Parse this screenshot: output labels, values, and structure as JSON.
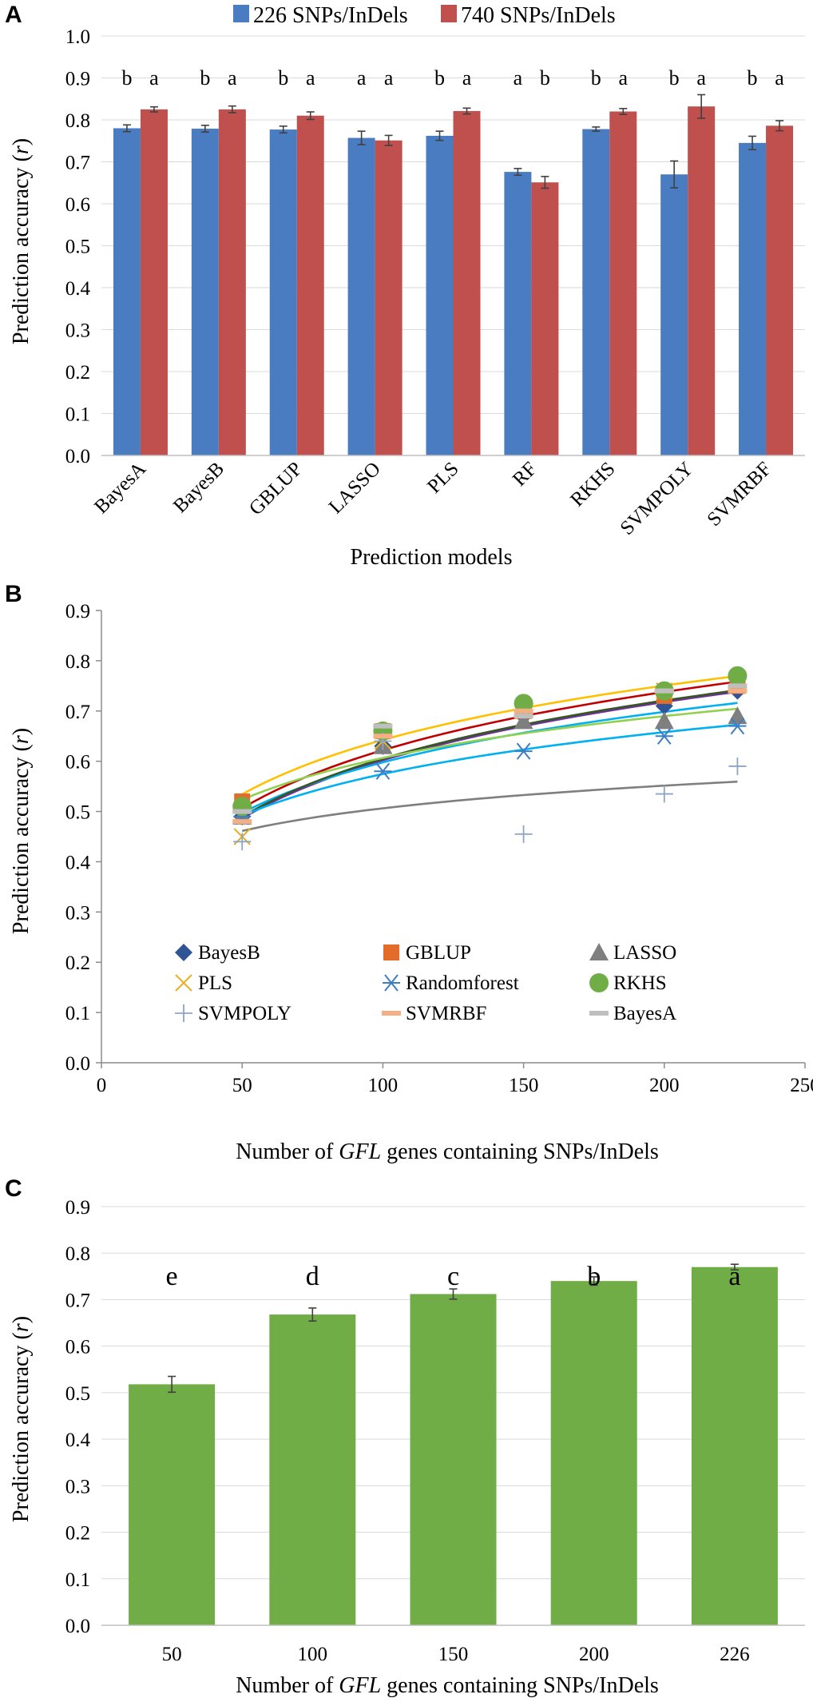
{
  "chart_data": [
    {
      "panel": "A",
      "type": "bar",
      "categories": [
        "BayesA",
        "BayesB",
        "GBLUP",
        "LASSO",
        "PLS",
        "RF",
        "RKHS",
        "SVMPOLY",
        "SVMRBF"
      ],
      "series": [
        {
          "name": "226 SNPs/InDels",
          "color": "#4a7cc1",
          "values": [
            0.78,
            0.779,
            0.777,
            0.757,
            0.762,
            0.676,
            0.778,
            0.67,
            0.745
          ],
          "errors": [
            0.008,
            0.008,
            0.008,
            0.016,
            0.011,
            0.008,
            0.005,
            0.032,
            0.016
          ],
          "letters": [
            "b",
            "b",
            "b",
            "a",
            "b",
            "a",
            "b",
            "b",
            "b"
          ]
        },
        {
          "name": "740 SNPs/InDels",
          "color": "#c0504d",
          "values": [
            0.825,
            0.825,
            0.81,
            0.751,
            0.821,
            0.651,
            0.82,
            0.832,
            0.786
          ],
          "errors": [
            0.006,
            0.008,
            0.009,
            0.012,
            0.007,
            0.014,
            0.007,
            0.028,
            0.012
          ],
          "letters": [
            "a",
            "a",
            "a",
            "a",
            "a",
            "b",
            "a",
            "a",
            "a"
          ]
        }
      ],
      "xlabel": "Prediction models",
      "ylabel": "Prediction accuracy (r)",
      "ylabel_main": "Prediction accuracy (",
      "ylabel_italic": "r",
      "ylabel_end": ")",
      "ylim": [
        0,
        1.0
      ],
      "yticks": [
        "0.0",
        "0.1",
        "0.2",
        "0.3",
        "0.4",
        "0.5",
        "0.6",
        "0.7",
        "0.8",
        "0.9",
        "1.0"
      ],
      "legend_position": "top"
    },
    {
      "panel": "B",
      "type": "scatter",
      "x": [
        50,
        100,
        150,
        200,
        226
      ],
      "series": [
        {
          "name": "BayesB",
          "marker": "diamond",
          "color": "#2f5597",
          "values": [
            0.49,
            0.63,
            0.69,
            0.71,
            0.74
          ]
        },
        {
          "name": "GBLUP",
          "marker": "square",
          "color": "#e46c2a",
          "values": [
            0.52,
            0.66,
            0.7,
            0.73,
            0.75
          ]
        },
        {
          "name": "LASSO",
          "marker": "triangle",
          "color": "#7f7f7f",
          "values": [
            0.49,
            0.63,
            0.68,
            0.68,
            0.69
          ]
        },
        {
          "name": "PLS",
          "marker": "x",
          "color": "#e6b021",
          "values": [
            0.45,
            0.64,
            0.7,
            0.74,
            0.76
          ]
        },
        {
          "name": "Randomforest",
          "marker": "asterisk",
          "color": "#3e7dc3",
          "values": [
            0.49,
            0.58,
            0.62,
            0.65,
            0.67
          ]
        },
        {
          "name": "RKHS",
          "marker": "circle",
          "color": "#70ad47",
          "values": [
            0.51,
            0.66,
            0.715,
            0.74,
            0.77
          ]
        },
        {
          "name": "SVMPOLY",
          "marker": "plus",
          "color": "#8da4c8",
          "values": [
            0.44,
            0.64,
            0.455,
            0.535,
            0.59
          ]
        },
        {
          "name": "SVMRBF",
          "marker": "dash",
          "color": "#f4b084",
          "values": [
            0.48,
            0.65,
            0.7,
            0.74,
            0.74
          ]
        },
        {
          "name": "BayesA",
          "marker": "dash",
          "color": "#bfbfbf",
          "values": [
            0.5,
            0.67,
            0.69,
            0.74,
            0.75
          ]
        }
      ],
      "trendlines": [
        {
          "type": "log",
          "color": "#c00000",
          "a": 0.167,
          "b": -0.147
        },
        {
          "type": "log",
          "color": "#ffc000",
          "a": 0.156,
          "b": -0.076
        },
        {
          "type": "log",
          "color": "#7030a0",
          "a": 0.167,
          "b": -0.167
        },
        {
          "type": "log",
          "color": "#00b0f0",
          "a": 0.145,
          "b": -0.07
        },
        {
          "type": "log",
          "color": "#375623",
          "a": 0.167,
          "b": -0.164
        },
        {
          "type": "log",
          "color": "#92d050",
          "a": 0.12,
          "b": 0.054
        },
        {
          "type": "log",
          "color": "#00b0f0",
          "a": 0.12,
          "b": 0.022
        },
        {
          "type": "log",
          "color": "#7f7f7f",
          "a": 0.065,
          "b": 0.207
        }
      ],
      "xlabel": "Number of GFL genes containing SNPs/InDels",
      "xlabel_pre": "Number of ",
      "xlabel_italic": "GFL",
      "xlabel_post": " genes containing SNPs/InDels",
      "ylabel": "Prediction accuracy (r)",
      "xlim": [
        0,
        250
      ],
      "ylim": [
        0,
        0.9
      ],
      "xticks": [
        "0",
        "50",
        "100",
        "150",
        "200",
        "250"
      ],
      "yticks": [
        "0.0",
        "0.1",
        "0.2",
        "0.3",
        "0.4",
        "0.5",
        "0.6",
        "0.7",
        "0.8",
        "0.9"
      ],
      "legend_position": "bottom-inside"
    },
    {
      "panel": "C",
      "type": "bar",
      "categories": [
        "50",
        "100",
        "150",
        "200",
        "226"
      ],
      "values": [
        0.518,
        0.668,
        0.712,
        0.74,
        0.77
      ],
      "errors": [
        0.017,
        0.014,
        0.011,
        0.009,
        0.006
      ],
      "letters": [
        "e",
        "d",
        "c",
        "b",
        "a"
      ],
      "color": "#70ad47",
      "xlabel": "Number of GFL genes containing SNPs/InDels",
      "ylabel": "Prediction accuracy (r)",
      "ylim": [
        0,
        0.9
      ],
      "yticks": [
        "0.0",
        "0.1",
        "0.2",
        "0.3",
        "0.4",
        "0.5",
        "0.6",
        "0.7",
        "0.8",
        "0.9"
      ]
    }
  ]
}
